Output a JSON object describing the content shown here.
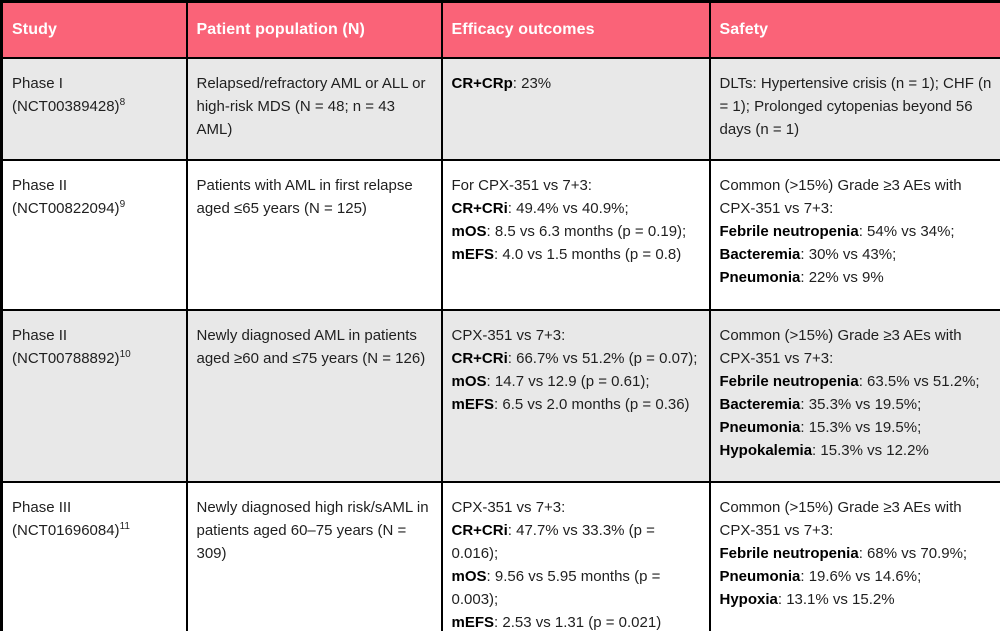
{
  "palette": {
    "header_pink": "#fa6378",
    "header_text": "#ffffff",
    "row_alt_gray": "#e8e8e8",
    "row_white": "#ffffff",
    "border_black": "#000000",
    "body_text": "#1f1f1f"
  },
  "header": {
    "columns": [
      "Study",
      "Patient population (N)",
      "Efficacy outcomes",
      "Safety"
    ]
  },
  "rows": [
    {
      "study": [
        {
          "t": "Phase I (NCT00389428)",
          "sup": "8"
        }
      ],
      "population": [
        {
          "t": "Relapsed/refractory AML or ALL or high-risk MDS (N = 48; n = 43 AML)"
        }
      ],
      "efficacy": [
        {
          "b": "CR+CRp",
          "t": ": 23%"
        }
      ],
      "safety": [
        {
          "t": "DLTs: Hypertensive crisis (n = 1); CHF (n = 1); Prolonged cytopenias beyond 56 days (n = 1)"
        }
      ]
    },
    {
      "study": [
        {
          "t": "Phase II (NCT00822094)",
          "sup": "9"
        }
      ],
      "population": [
        {
          "t": "Patients with AML in first relapse aged ≤65 years (N = 125)"
        }
      ],
      "efficacy": [
        {
          "t": "For CPX-351 vs 7+3:"
        },
        {
          "b": "CR+CRi",
          "t": ": 49.4% vs 40.9%;"
        },
        {
          "b": "mOS",
          "t": ": 8.5 vs 6.3 months (p = 0.19);"
        },
        {
          "b": "mEFS",
          "t": ": 4.0 vs 1.5 months (p = 0.8)"
        }
      ],
      "safety": [
        {
          "t": "Common (>15%) Grade ≥3 AEs with CPX-351 vs 7+3:"
        },
        {
          "b": "Febrile neutropenia",
          "t": ": 54% vs 34%;"
        },
        {
          "b": "Bacteremia",
          "t": ": 30% vs 43%;"
        },
        {
          "b": "Pneumonia",
          "t": ": 22% vs 9%"
        }
      ]
    },
    {
      "study": [
        {
          "t": "Phase II (NCT00788892)",
          "sup": "10"
        }
      ],
      "population": [
        {
          "t": "Newly diagnosed AML in patients aged ≥60 and ≤75 years (N = 126)"
        }
      ],
      "efficacy": [
        {
          "t": "CPX-351 vs 7+3:"
        },
        {
          "b": "CR+CRi",
          "t": ": 66.7% vs 51.2% (p = 0.07);"
        },
        {
          "b": "mOS",
          "t": ": 14.7 vs 12.9 (p = 0.61);"
        },
        {
          "b": "mEFS",
          "t": ": 6.5 vs 2.0 months (p = 0.36)"
        }
      ],
      "safety": [
        {
          "t": "Common (>15%) Grade ≥3 AEs with CPX-351 vs 7+3:"
        },
        {
          "b": "Febrile neutropenia",
          "t": ": 63.5% vs 51.2%;"
        },
        {
          "b": "Bacteremia",
          "t": ": 35.3% vs 19.5%;"
        },
        {
          "b": "Pneumonia",
          "t": ": 15.3% vs 19.5%;"
        },
        {
          "b": "Hypokalemia",
          "t": ": 15.3% vs 12.2%"
        }
      ]
    },
    {
      "study": [
        {
          "t": "Phase III"
        },
        {
          "t": "(NCT01696084)",
          "sup": "11"
        }
      ],
      "population": [
        {
          "t": "Newly diagnosed high risk/sAML in patients aged 60–75 years (N = 309)"
        }
      ],
      "efficacy": [
        {
          "t": "CPX-351 vs 7+3:"
        },
        {
          "b": "CR+CRi",
          "t": ": 47.7% vs 33.3% (p = 0.016);"
        },
        {
          "b": "mOS",
          "t": ": 9.56 vs 5.95 months (p = 0.003);"
        },
        {
          "b": "mEFS",
          "t": ": 2.53 vs 1.31 (p = 0.021)"
        }
      ],
      "safety": [
        {
          "t": "Common (>15%) Grade ≥3 AEs with CPX-351 vs 7+3:"
        },
        {
          "b": "Febrile neutropenia",
          "t": ": 68% vs 70.9%;"
        },
        {
          "b": "Pneumonia",
          "t": ": 19.6% vs 14.6%;"
        },
        {
          "b": "Hypoxia",
          "t": ": 13.1% vs 15.2%"
        }
      ]
    }
  ]
}
